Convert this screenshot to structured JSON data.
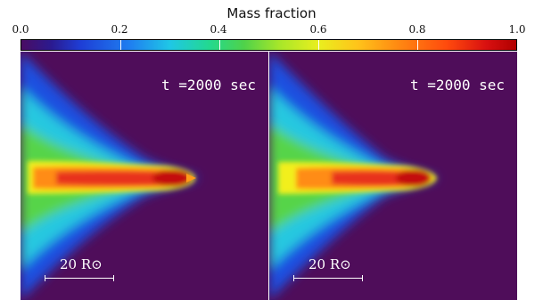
{
  "colorbar": {
    "title": "Mass fraction",
    "ticks": [
      "0.0",
      "0.2",
      "0.4",
      "0.6",
      "0.8",
      "1.0"
    ],
    "range": [
      0.0,
      1.0
    ]
  },
  "panels": [
    {
      "time_label": "t =2000 sec",
      "scale_label": "20 R⊙"
    },
    {
      "time_label": "t =2000 sec",
      "scale_label": "20 R⊙"
    }
  ],
  "colors": {
    "background": "#4f0d5a",
    "outer_blue": "#1f4fe0",
    "cyan": "#27c8e0",
    "green": "#57d44a",
    "yellow": "#f2ef1f",
    "orange": "#ff8c12",
    "red": "#d81010"
  }
}
